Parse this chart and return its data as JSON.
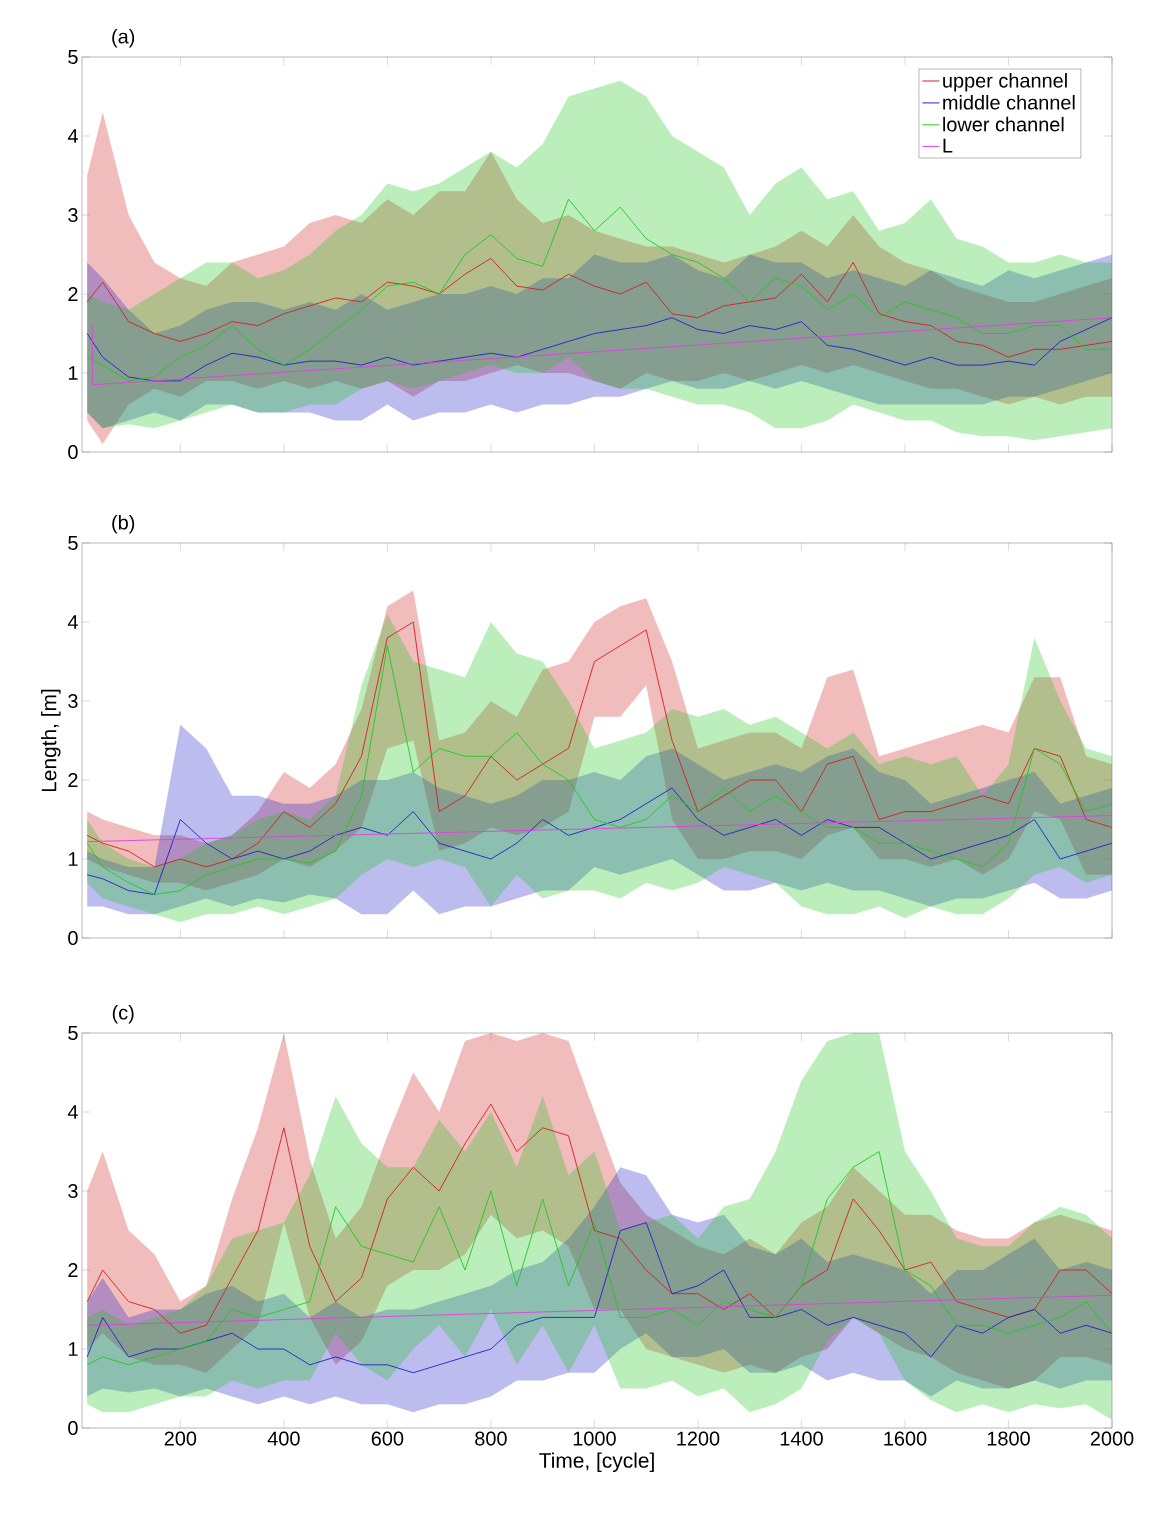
{
  "chart_data": [
    {
      "type": "line",
      "title": "(a)",
      "xlim": [
        10,
        2000
      ],
      "ylim": [
        0,
        5
      ],
      "xticks": [
        200,
        400,
        600,
        800,
        1000,
        1200,
        1400,
        1600,
        1800,
        2000
      ],
      "yticks": [
        0,
        1,
        2,
        3,
        4,
        5
      ],
      "tick_labels": "y",
      "legend": "top right",
      "x": [
        20,
        50,
        100,
        150,
        200,
        250,
        300,
        350,
        400,
        450,
        500,
        550,
        600,
        650,
        700,
        750,
        800,
        850,
        900,
        950,
        1000,
        1050,
        1100,
        1150,
        1200,
        1250,
        1300,
        1350,
        1400,
        1450,
        1500,
        1550,
        1600,
        1650,
        1700,
        1750,
        1800,
        1850,
        1900,
        1950,
        2000
      ],
      "series": [
        {
          "name": "upper channel",
          "color": "#d02020",
          "values": [
            1.9,
            2.15,
            1.65,
            1.5,
            1.4,
            1.5,
            1.65,
            1.6,
            1.75,
            1.85,
            1.95,
            1.9,
            2.15,
            2.1,
            2.0,
            2.25,
            2.45,
            2.1,
            2.05,
            2.25,
            2.1,
            2.0,
            2.15,
            1.75,
            1.7,
            1.85,
            1.9,
            1.95,
            2.25,
            1.9,
            2.4,
            1.75,
            1.65,
            1.6,
            1.4,
            1.35,
            1.2,
            1.3,
            1.3,
            1.35,
            1.4
          ],
          "upper": [
            3.5,
            4.3,
            3.0,
            2.4,
            2.2,
            2.1,
            2.4,
            2.5,
            2.6,
            2.9,
            3.0,
            2.9,
            3.2,
            3.0,
            3.3,
            3.3,
            3.8,
            3.2,
            2.9,
            3.0,
            2.8,
            2.7,
            2.6,
            2.6,
            2.5,
            2.4,
            2.5,
            2.6,
            2.8,
            2.6,
            3.0,
            2.6,
            2.4,
            2.3,
            2.1,
            2.0,
            1.9,
            1.9,
            2.0,
            2.1,
            2.2
          ],
          "lower": [
            0.4,
            0.1,
            0.6,
            0.8,
            0.7,
            0.9,
            0.9,
            0.8,
            0.9,
            0.8,
            0.9,
            0.8,
            0.9,
            0.7,
            0.9,
            0.9,
            1.0,
            1.1,
            1.0,
            1.0,
            0.9,
            0.8,
            1.0,
            0.9,
            0.9,
            1.0,
            0.9,
            1.0,
            1.1,
            1.0,
            1.1,
            1.0,
            0.9,
            0.8,
            0.8,
            0.7,
            0.6,
            0.7,
            0.6,
            0.7,
            0.7
          ]
        },
        {
          "name": "middle channel",
          "color": "#2020c8",
          "values": [
            1.5,
            1.2,
            0.95,
            0.9,
            0.9,
            1.1,
            1.25,
            1.2,
            1.1,
            1.15,
            1.15,
            1.1,
            1.2,
            1.1,
            1.15,
            1.2,
            1.25,
            1.2,
            1.3,
            1.4,
            1.5,
            1.55,
            1.6,
            1.7,
            1.55,
            1.5,
            1.6,
            1.55,
            1.65,
            1.35,
            1.3,
            1.2,
            1.1,
            1.2,
            1.1,
            1.1,
            1.15,
            1.1,
            1.4,
            1.55,
            1.7
          ],
          "upper": [
            2.4,
            2.2,
            1.8,
            1.5,
            1.6,
            1.8,
            1.9,
            1.9,
            1.8,
            1.9,
            1.8,
            2.0,
            1.8,
            1.9,
            2.0,
            2.0,
            2.1,
            2.0,
            2.2,
            2.2,
            2.5,
            2.4,
            2.4,
            2.5,
            2.3,
            2.2,
            2.5,
            2.4,
            2.4,
            2.2,
            2.3,
            2.2,
            2.1,
            2.3,
            2.2,
            2.1,
            2.3,
            2.2,
            2.3,
            2.4,
            2.5
          ],
          "lower": [
            0.5,
            0.3,
            0.4,
            0.5,
            0.4,
            0.6,
            0.6,
            0.5,
            0.5,
            0.5,
            0.4,
            0.4,
            0.6,
            0.4,
            0.5,
            0.5,
            0.6,
            0.5,
            0.6,
            0.6,
            0.7,
            0.7,
            0.8,
            0.9,
            0.8,
            0.8,
            0.9,
            0.8,
            0.9,
            0.8,
            0.7,
            0.6,
            0.6,
            0.6,
            0.6,
            0.6,
            0.7,
            0.7,
            0.8,
            0.9,
            1.0
          ]
        },
        {
          "name": "lower channel",
          "color": "#20c820",
          "values": [
            1.2,
            1.1,
            0.9,
            0.95,
            1.2,
            1.35,
            1.6,
            1.3,
            1.1,
            1.3,
            1.55,
            1.8,
            2.1,
            2.15,
            2.0,
            2.5,
            2.75,
            2.45,
            2.35,
            3.2,
            2.8,
            3.1,
            2.7,
            2.5,
            2.4,
            2.2,
            1.9,
            2.2,
            2.1,
            1.8,
            2.0,
            1.7,
            1.9,
            1.8,
            1.7,
            1.5,
            1.5,
            1.6,
            1.6,
            1.3,
            1.3
          ],
          "upper": [
            2.0,
            1.9,
            1.8,
            2.0,
            2.2,
            2.4,
            2.4,
            2.2,
            2.3,
            2.5,
            2.8,
            3.0,
            3.4,
            3.3,
            3.4,
            3.6,
            3.8,
            3.6,
            3.9,
            4.5,
            4.6,
            4.7,
            4.5,
            4.0,
            3.8,
            3.6,
            3.0,
            3.4,
            3.6,
            3.2,
            3.3,
            2.8,
            2.9,
            3.2,
            2.7,
            2.6,
            2.4,
            2.4,
            2.5,
            2.4,
            2.4
          ],
          "lower": [
            0.5,
            0.3,
            0.35,
            0.3,
            0.4,
            0.5,
            0.6,
            0.5,
            0.5,
            0.6,
            0.6,
            0.8,
            0.9,
            0.8,
            0.9,
            1.0,
            1.1,
            1.0,
            1.0,
            1.2,
            0.9,
            0.8,
            0.8,
            0.7,
            0.6,
            0.6,
            0.5,
            0.3,
            0.3,
            0.4,
            0.6,
            0.5,
            0.4,
            0.4,
            0.25,
            0.2,
            0.2,
            0.15,
            0.2,
            0.25,
            0.3
          ]
        },
        {
          "name": "L",
          "color": "#e040e0",
          "x": [
            30,
            30,
            2000
          ],
          "values": [
            1.6,
            0.85,
            1.7
          ]
        }
      ]
    },
    {
      "type": "line",
      "title": "(b)",
      "ylabel": "Length, [m]",
      "xlim": [
        10,
        2000
      ],
      "ylim": [
        0,
        5
      ],
      "xticks": [
        200,
        400,
        600,
        800,
        1000,
        1200,
        1400,
        1600,
        1800,
        2000
      ],
      "yticks": [
        0,
        1,
        2,
        3,
        4,
        5
      ],
      "tick_labels": "y",
      "x": [
        20,
        50,
        100,
        150,
        200,
        250,
        300,
        350,
        400,
        450,
        500,
        550,
        600,
        650,
        700,
        750,
        800,
        850,
        900,
        950,
        1000,
        1050,
        1100,
        1150,
        1200,
        1250,
        1300,
        1350,
        1400,
        1450,
        1500,
        1550,
        1600,
        1650,
        1700,
        1750,
        1800,
        1850,
        1900,
        1950,
        2000
      ],
      "series": [
        {
          "color": "#d02020",
          "values": [
            1.3,
            1.2,
            1.1,
            0.9,
            1.0,
            0.9,
            1.0,
            1.2,
            1.6,
            1.4,
            1.7,
            2.3,
            3.8,
            4.0,
            1.6,
            1.8,
            2.3,
            2.0,
            2.2,
            2.4,
            3.5,
            3.7,
            3.9,
            2.5,
            1.6,
            1.8,
            2.0,
            2.0,
            1.6,
            2.2,
            2.3,
            1.5,
            1.6,
            1.6,
            1.7,
            1.8,
            1.7,
            2.4,
            2.3,
            1.5,
            1.4
          ],
          "upper": [
            1.6,
            1.5,
            1.4,
            1.3,
            1.3,
            1.2,
            1.3,
            1.6,
            2.1,
            1.9,
            2.2,
            2.9,
            4.2,
            4.4,
            2.5,
            2.6,
            3.0,
            2.8,
            3.4,
            3.5,
            4.0,
            4.2,
            4.3,
            3.5,
            2.4,
            2.5,
            2.6,
            2.6,
            2.4,
            3.3,
            3.4,
            2.3,
            2.4,
            2.5,
            2.6,
            2.7,
            2.6,
            3.3,
            3.3,
            2.3,
            2.2
          ],
          "lower": [
            1.0,
            0.9,
            0.8,
            0.7,
            0.7,
            0.6,
            0.7,
            0.8,
            1.0,
            0.9,
            1.1,
            1.4,
            2.4,
            2.5,
            1.1,
            1.2,
            1.4,
            1.3,
            1.4,
            1.6,
            2.8,
            2.8,
            3.2,
            1.5,
            1.0,
            1.0,
            1.1,
            1.1,
            1.0,
            1.3,
            1.4,
            1.0,
            1.0,
            0.9,
            1.0,
            0.8,
            1.0,
            1.6,
            1.5,
            0.8,
            0.8
          ]
        },
        {
          "color": "#2020c8",
          "values": [
            0.8,
            0.75,
            0.6,
            0.55,
            1.5,
            1.2,
            1.0,
            1.1,
            1.0,
            1.1,
            1.3,
            1.4,
            1.3,
            1.6,
            1.2,
            1.1,
            1.0,
            1.2,
            1.5,
            1.3,
            1.4,
            1.5,
            1.7,
            1.9,
            1.5,
            1.3,
            1.4,
            1.5,
            1.3,
            1.5,
            1.4,
            1.4,
            1.2,
            1.0,
            1.1,
            1.2,
            1.3,
            1.5,
            1.0,
            1.1,
            1.2
          ],
          "upper": [
            1.1,
            1.0,
            0.9,
            0.9,
            2.7,
            2.4,
            1.8,
            1.8,
            1.7,
            1.7,
            1.8,
            2.0,
            2.0,
            2.1,
            1.9,
            1.8,
            1.7,
            1.8,
            2.0,
            2.0,
            2.1,
            2.0,
            2.3,
            2.4,
            2.2,
            2.0,
            2.1,
            2.2,
            2.1,
            2.3,
            2.4,
            2.1,
            2.0,
            1.7,
            1.8,
            1.9,
            2.0,
            2.1,
            1.7,
            1.8,
            1.9
          ],
          "lower": [
            0.4,
            0.4,
            0.3,
            0.3,
            0.4,
            0.5,
            0.4,
            0.5,
            0.45,
            0.55,
            0.5,
            0.3,
            0.3,
            0.6,
            0.3,
            0.4,
            0.4,
            0.5,
            0.6,
            0.6,
            0.9,
            0.8,
            0.9,
            1.0,
            0.8,
            0.6,
            0.6,
            0.7,
            0.6,
            0.7,
            0.6,
            0.6,
            0.5,
            0.4,
            0.5,
            0.5,
            0.6,
            0.7,
            0.5,
            0.5,
            0.6
          ]
        },
        {
          "color": "#20c820",
          "values": [
            1.2,
            0.9,
            0.7,
            0.55,
            0.6,
            0.8,
            0.9,
            1.0,
            1.0,
            0.95,
            1.1,
            1.8,
            3.7,
            2.1,
            2.4,
            2.3,
            2.3,
            2.6,
            2.2,
            2.0,
            1.5,
            1.4,
            1.5,
            1.8,
            1.6,
            1.9,
            1.6,
            1.8,
            1.6,
            1.4,
            1.4,
            1.2,
            1.2,
            1.1,
            1.0,
            0.9,
            1.2,
            2.4,
            2.2,
            1.6,
            1.7
          ],
          "upper": [
            1.5,
            1.2,
            1.0,
            0.9,
            1.0,
            1.2,
            1.3,
            1.5,
            1.6,
            1.5,
            1.8,
            3.2,
            4.1,
            3.5,
            3.4,
            3.3,
            4.0,
            3.6,
            3.5,
            3.0,
            2.4,
            2.5,
            2.6,
            2.9,
            2.8,
            2.9,
            2.7,
            2.8,
            2.6,
            2.4,
            2.6,
            2.2,
            2.3,
            2.2,
            2.3,
            1.8,
            2.2,
            3.8,
            3.0,
            2.4,
            2.3
          ],
          "lower": [
            0.7,
            0.5,
            0.4,
            0.3,
            0.2,
            0.3,
            0.3,
            0.4,
            0.3,
            0.4,
            0.5,
            0.8,
            1.0,
            0.9,
            1.0,
            0.9,
            0.4,
            0.8,
            0.5,
            0.6,
            0.6,
            0.5,
            0.7,
            0.6,
            0.7,
            0.9,
            0.8,
            0.7,
            0.4,
            0.3,
            0.3,
            0.4,
            0.25,
            0.4,
            0.3,
            0.3,
            0.5,
            0.8,
            0.9,
            0.7,
            0.8
          ]
        },
        {
          "color": "#e040e0",
          "x": [
            20,
            2000
          ],
          "values": [
            1.22,
            1.55
          ]
        }
      ]
    },
    {
      "type": "line",
      "title": "(c)",
      "xlabel": "Time, [cycle]",
      "xlim": [
        10,
        2000
      ],
      "ylim": [
        0,
        5
      ],
      "xticks": [
        200,
        400,
        600,
        800,
        1000,
        1200,
        1400,
        1600,
        1800,
        2000
      ],
      "yticks": [
        0,
        1,
        2,
        3,
        4,
        5
      ],
      "x": [
        20,
        50,
        100,
        150,
        200,
        250,
        300,
        350,
        400,
        450,
        500,
        550,
        600,
        650,
        700,
        750,
        800,
        850,
        900,
        950,
        1000,
        1050,
        1100,
        1150,
        1200,
        1250,
        1300,
        1350,
        1400,
        1450,
        1500,
        1550,
        1600,
        1650,
        1700,
        1750,
        1800,
        1850,
        1900,
        1950,
        2000
      ],
      "series": [
        {
          "color": "#d02020",
          "values": [
            1.6,
            2.0,
            1.6,
            1.5,
            1.2,
            1.3,
            1.9,
            2.5,
            3.8,
            2.3,
            1.6,
            1.9,
            2.9,
            3.3,
            3.0,
            3.6,
            4.1,
            3.5,
            3.8,
            3.7,
            2.5,
            2.4,
            2.0,
            1.7,
            1.7,
            1.5,
            1.7,
            1.4,
            1.8,
            2.0,
            2.9,
            2.5,
            2.0,
            2.1,
            1.6,
            1.5,
            1.4,
            1.5,
            2.0,
            2.0,
            1.7
          ],
          "upper": [
            3.0,
            3.5,
            2.5,
            2.2,
            1.6,
            1.8,
            2.9,
            3.8,
            5.0,
            3.4,
            2.4,
            2.8,
            3.7,
            4.5,
            4.0,
            4.9,
            5.0,
            4.9,
            5.0,
            4.9,
            4.0,
            3.1,
            2.7,
            2.5,
            2.3,
            2.2,
            2.4,
            2.2,
            2.6,
            2.8,
            3.3,
            3.0,
            2.7,
            2.7,
            2.5,
            2.4,
            2.4,
            2.6,
            2.7,
            2.6,
            2.5
          ],
          "lower": [
            1.0,
            1.2,
            0.9,
            0.8,
            0.8,
            0.7,
            1.0,
            1.3,
            2.6,
            1.4,
            0.8,
            1.1,
            1.8,
            2.0,
            2.0,
            2.2,
            2.7,
            2.4,
            2.5,
            2.3,
            1.5,
            1.5,
            1.0,
            0.9,
            0.8,
            0.7,
            0.8,
            0.7,
            0.9,
            1.0,
            1.4,
            1.2,
            1.0,
            0.9,
            0.7,
            0.6,
            0.5,
            0.6,
            0.9,
            0.9,
            0.8
          ]
        },
        {
          "color": "#2020c8",
          "values": [
            0.9,
            1.4,
            0.9,
            1.0,
            1.0,
            1.1,
            1.2,
            1.0,
            1.0,
            0.8,
            0.9,
            0.8,
            0.8,
            0.7,
            0.8,
            0.9,
            1.0,
            1.3,
            1.4,
            1.4,
            1.4,
            2.5,
            2.6,
            1.7,
            1.8,
            2.0,
            1.4,
            1.4,
            1.5,
            1.3,
            1.4,
            1.3,
            1.2,
            0.9,
            1.3,
            1.2,
            1.4,
            1.5,
            1.2,
            1.3,
            1.2
          ],
          "upper": [
            1.6,
            1.9,
            1.4,
            1.5,
            1.5,
            1.7,
            1.8,
            1.6,
            1.7,
            1.4,
            1.6,
            1.4,
            1.5,
            1.5,
            1.6,
            1.7,
            1.8,
            2.0,
            2.1,
            2.4,
            2.8,
            3.3,
            3.2,
            2.7,
            2.6,
            2.7,
            2.3,
            2.2,
            2.4,
            2.1,
            2.2,
            2.1,
            2.0,
            1.7,
            2.0,
            2.0,
            2.2,
            2.4,
            2.0,
            2.1,
            2.0
          ],
          "lower": [
            0.4,
            0.5,
            0.45,
            0.5,
            0.4,
            0.5,
            0.4,
            0.3,
            0.4,
            0.3,
            0.4,
            0.3,
            0.3,
            0.2,
            0.3,
            0.3,
            0.4,
            0.6,
            0.6,
            0.7,
            0.7,
            1.0,
            1.2,
            0.9,
            0.9,
            1.0,
            0.7,
            0.7,
            0.8,
            0.6,
            0.7,
            0.6,
            0.6,
            0.4,
            0.6,
            0.5,
            0.5,
            0.6,
            0.5,
            0.6,
            0.6
          ]
        },
        {
          "color": "#20c820",
          "values": [
            0.8,
            0.9,
            0.8,
            0.9,
            1.0,
            1.1,
            1.5,
            1.4,
            1.5,
            1.6,
            2.8,
            2.3,
            2.2,
            2.1,
            2.8,
            2.0,
            3.0,
            1.8,
            2.9,
            1.8,
            2.6,
            1.4,
            1.4,
            1.5,
            1.3,
            1.6,
            1.5,
            1.4,
            1.8,
            2.9,
            3.3,
            3.5,
            2.0,
            1.8,
            1.3,
            1.3,
            1.2,
            1.3,
            1.4,
            1.6,
            1.2
          ],
          "upper": [
            1.4,
            1.5,
            1.3,
            1.4,
            1.5,
            1.8,
            2.4,
            2.5,
            2.6,
            3.2,
            4.2,
            3.6,
            3.3,
            3.3,
            3.9,
            3.5,
            4.0,
            3.3,
            4.2,
            3.2,
            3.5,
            2.5,
            2.6,
            2.7,
            2.4,
            2.8,
            2.9,
            3.5,
            4.4,
            4.9,
            5.0,
            5.0,
            3.5,
            3.0,
            2.4,
            2.3,
            2.3,
            2.6,
            2.8,
            2.7,
            2.4
          ],
          "lower": [
            0.3,
            0.2,
            0.2,
            0.3,
            0.4,
            0.4,
            0.6,
            0.5,
            0.6,
            0.6,
            1.2,
            0.8,
            0.6,
            1.0,
            1.3,
            0.9,
            1.5,
            0.8,
            1.3,
            0.7,
            1.3,
            0.5,
            0.5,
            0.6,
            0.4,
            0.5,
            0.2,
            0.3,
            0.5,
            1.1,
            1.4,
            1.2,
            0.6,
            0.35,
            0.2,
            0.3,
            0.2,
            0.3,
            0.25,
            0.3,
            0.1
          ]
        },
        {
          "color": "#e040e0",
          "x": [
            20,
            2000
          ],
          "values": [
            1.3,
            1.68
          ]
        }
      ]
    }
  ]
}
